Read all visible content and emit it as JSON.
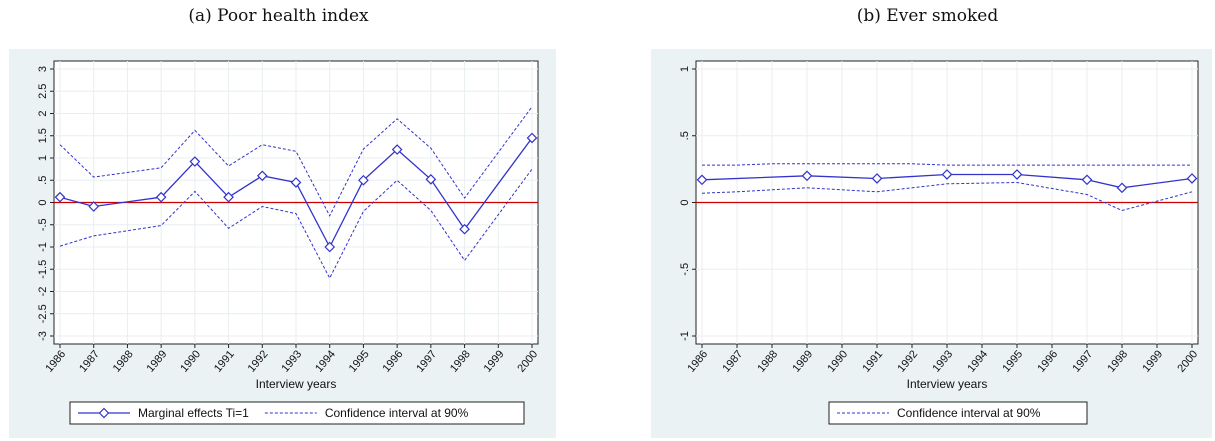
{
  "chart_data": [
    {
      "id": "a",
      "type": "line",
      "subcaption": "(a) Poor health index",
      "xlabel": "Interview years",
      "ylabel": "",
      "x": [
        1986,
        1987,
        1988,
        1989,
        1990,
        1991,
        1992,
        1993,
        1994,
        1995,
        1996,
        1997,
        1998,
        1999,
        2000
      ],
      "xtick_labels": [
        "1986",
        "1987",
        "1988",
        "1989",
        "1990",
        "1991",
        "1992",
        "1993",
        "1994",
        "1995",
        "1996",
        "1997",
        "1998",
        "1999",
        "2000"
      ],
      "ylim": [
        -3,
        3
      ],
      "yticks": [
        -3,
        -2.5,
        -2,
        -1.5,
        -1,
        -0.5,
        0,
        0.5,
        1,
        1.5,
        2,
        2.5,
        3
      ],
      "ytick_labels": [
        "-3",
        "-2.5",
        "-2",
        "-1.5",
        "-1",
        "-.5",
        "0",
        ".5",
        "1",
        "1.5",
        "2",
        "2.5",
        "3"
      ],
      "reference_line": 0,
      "colors": {
        "series": "#3333cc",
        "reference": "#cc0000",
        "frame_bg": "#eaf2f3",
        "plot_bg": "#ffffff"
      },
      "series": [
        {
          "name": "Marginal effects Ti=1",
          "style": "solid-diamond",
          "x": [
            1986,
            1987,
            1989,
            1990,
            1991,
            1992,
            1993,
            1994,
            1995,
            1996,
            1997,
            1998,
            2000
          ],
          "values": [
            0.12,
            -0.09,
            0.12,
            0.92,
            0.12,
            0.6,
            0.45,
            -1.0,
            0.5,
            1.19,
            0.52,
            -0.6,
            1.45
          ]
        },
        {
          "name": "Confidence interval at 90%",
          "style": "dashed",
          "role": "upper",
          "x": [
            1986,
            1987,
            1989,
            1990,
            1991,
            1992,
            1993,
            1994,
            1995,
            1996,
            1997,
            1998,
            2000
          ],
          "values": [
            1.3,
            0.57,
            0.78,
            1.62,
            0.82,
            1.3,
            1.15,
            -0.3,
            1.2,
            1.88,
            1.22,
            0.1,
            2.15
          ]
        },
        {
          "name": "Confidence interval at 90%",
          "style": "dashed",
          "role": "lower",
          "x": [
            1986,
            1987,
            1989,
            1990,
            1991,
            1992,
            1993,
            1994,
            1995,
            1996,
            1997,
            1998,
            2000
          ],
          "values": [
            -0.98,
            -0.75,
            -0.52,
            0.25,
            -0.58,
            -0.09,
            -0.25,
            -1.7,
            -0.2,
            0.5,
            -0.18,
            -1.3,
            0.75
          ]
        }
      ],
      "legend": [
        "Marginal effects Ti=1",
        "Confidence interval at 90%"
      ]
    },
    {
      "id": "b",
      "type": "line",
      "subcaption": "(b) Ever smoked",
      "xlabel": "Interview years",
      "ylabel": "",
      "x": [
        1986,
        1987,
        1988,
        1989,
        1990,
        1991,
        1992,
        1993,
        1994,
        1995,
        1996,
        1997,
        1998,
        1999,
        2000
      ],
      "xtick_labels": [
        "1986",
        "1987",
        "1988",
        "1989",
        "1990",
        "1991",
        "1992",
        "1993",
        "1994",
        "1995",
        "1996",
        "1997",
        "1998",
        "1999",
        "2000"
      ],
      "ylim": [
        -1,
        1
      ],
      "yticks": [
        -1,
        -0.5,
        0,
        0.5,
        1
      ],
      "ytick_labels": [
        "-1",
        "-.5",
        "0",
        ".5",
        "1"
      ],
      "reference_line": 0,
      "colors": {
        "series": "#3333cc",
        "reference": "#cc0000",
        "frame_bg": "#eaf2f3",
        "plot_bg": "#ffffff"
      },
      "series": [
        {
          "name": "",
          "style": "solid-diamond",
          "x": [
            1986,
            1989,
            1991,
            1993,
            1995,
            1997,
            1998,
            2000
          ],
          "values": [
            0.17,
            0.2,
            0.18,
            0.21,
            0.21,
            0.17,
            0.11,
            0.18
          ]
        },
        {
          "name": "Confidence interval at 90%",
          "style": "dashed",
          "role": "upper",
          "x": [
            1986,
            1987,
            1988,
            1989,
            1990,
            1991,
            1992,
            1993,
            1994,
            1995,
            1996,
            1997,
            1998,
            1999,
            2000
          ],
          "values": [
            0.28,
            0.28,
            0.29,
            0.29,
            0.29,
            0.29,
            0.29,
            0.28,
            0.28,
            0.28,
            0.28,
            0.28,
            0.28,
            0.28,
            0.28
          ]
        },
        {
          "name": "Confidence interval at 90%",
          "style": "dashed",
          "role": "lower",
          "x": [
            1986,
            1987,
            1989,
            1991,
            1993,
            1995,
            1997,
            1998,
            2000
          ],
          "values": [
            0.07,
            0.08,
            0.11,
            0.08,
            0.14,
            0.15,
            0.06,
            -0.06,
            0.08
          ]
        }
      ],
      "legend": [
        "Confidence interval at 90%"
      ]
    }
  ]
}
